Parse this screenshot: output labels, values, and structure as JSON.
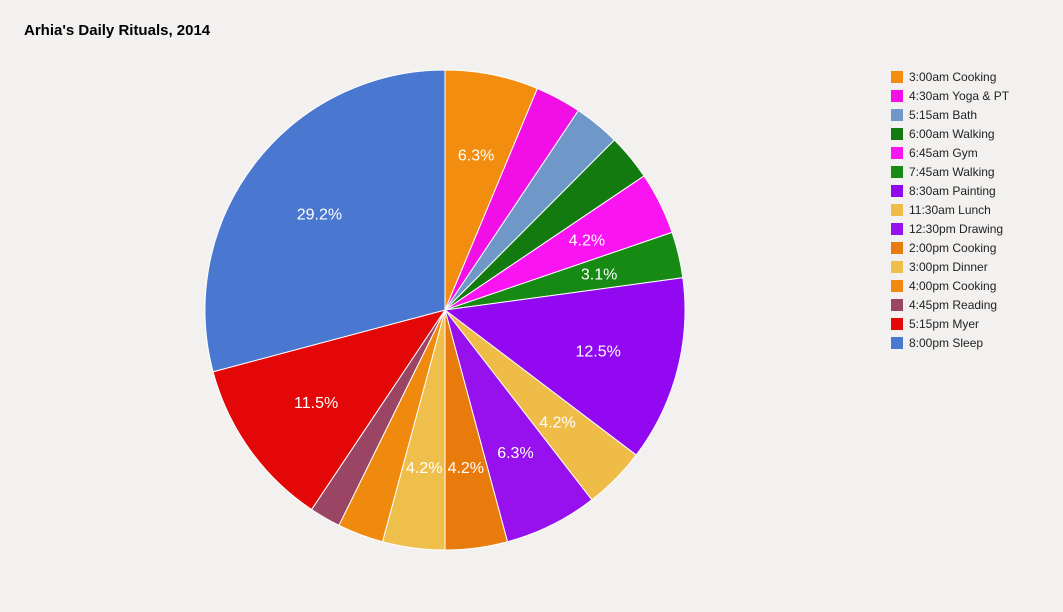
{
  "chart_data": {
    "type": "pie",
    "title": "Arhia's Daily Rituals, 2014",
    "legend_position": "right",
    "slices": [
      {
        "label": "3:00am Cooking",
        "value": 6.3,
        "color": "#f28d0f",
        "data_label": "6.3%"
      },
      {
        "label": "4:30am Yoga & PT",
        "value": 3.1,
        "color": "#f20fe6",
        "data_label": ""
      },
      {
        "label": "5:15am Bath",
        "value": 3.1,
        "color": "#6f97c8",
        "data_label": ""
      },
      {
        "label": "6:00am Walking",
        "value": 3.1,
        "color": "#137a0f",
        "data_label": ""
      },
      {
        "label": "6:45am Gym",
        "value": 4.2,
        "color": "#fa14f1",
        "data_label": "4.2%"
      },
      {
        "label": "7:45am Walking",
        "value": 3.1,
        "color": "#178a14",
        "data_label": "3.1%"
      },
      {
        "label": "8:30am Painting",
        "value": 12.5,
        "color": "#9209f1",
        "data_label": "12.5%"
      },
      {
        "label": "11:30am Lunch",
        "value": 4.2,
        "color": "#efbc47",
        "data_label": "4.2%"
      },
      {
        "label": "12:30pm Drawing",
        "value": 6.3,
        "color": "#9710ee",
        "data_label": "6.3%"
      },
      {
        "label": "2:00pm Cooking",
        "value": 4.2,
        "color": "#e97b0c",
        "data_label": "4.2%"
      },
      {
        "label": "3:00pm Dinner",
        "value": 4.2,
        "color": "#efbf4c",
        "data_label": "4.2%"
      },
      {
        "label": "4:00pm Cooking",
        "value": 3.1,
        "color": "#f08a0e",
        "data_label": ""
      },
      {
        "label": "4:45pm Reading",
        "value": 2.1,
        "color": "#9b4565",
        "data_label": ""
      },
      {
        "label": "5:15pm Myer",
        "value": 11.5,
        "color": "#e30707",
        "data_label": "11.5%"
      },
      {
        "label": "8:00pm Sleep",
        "value": 29.2,
        "color": "#4a77d0",
        "data_label": "29.2%"
      }
    ]
  }
}
